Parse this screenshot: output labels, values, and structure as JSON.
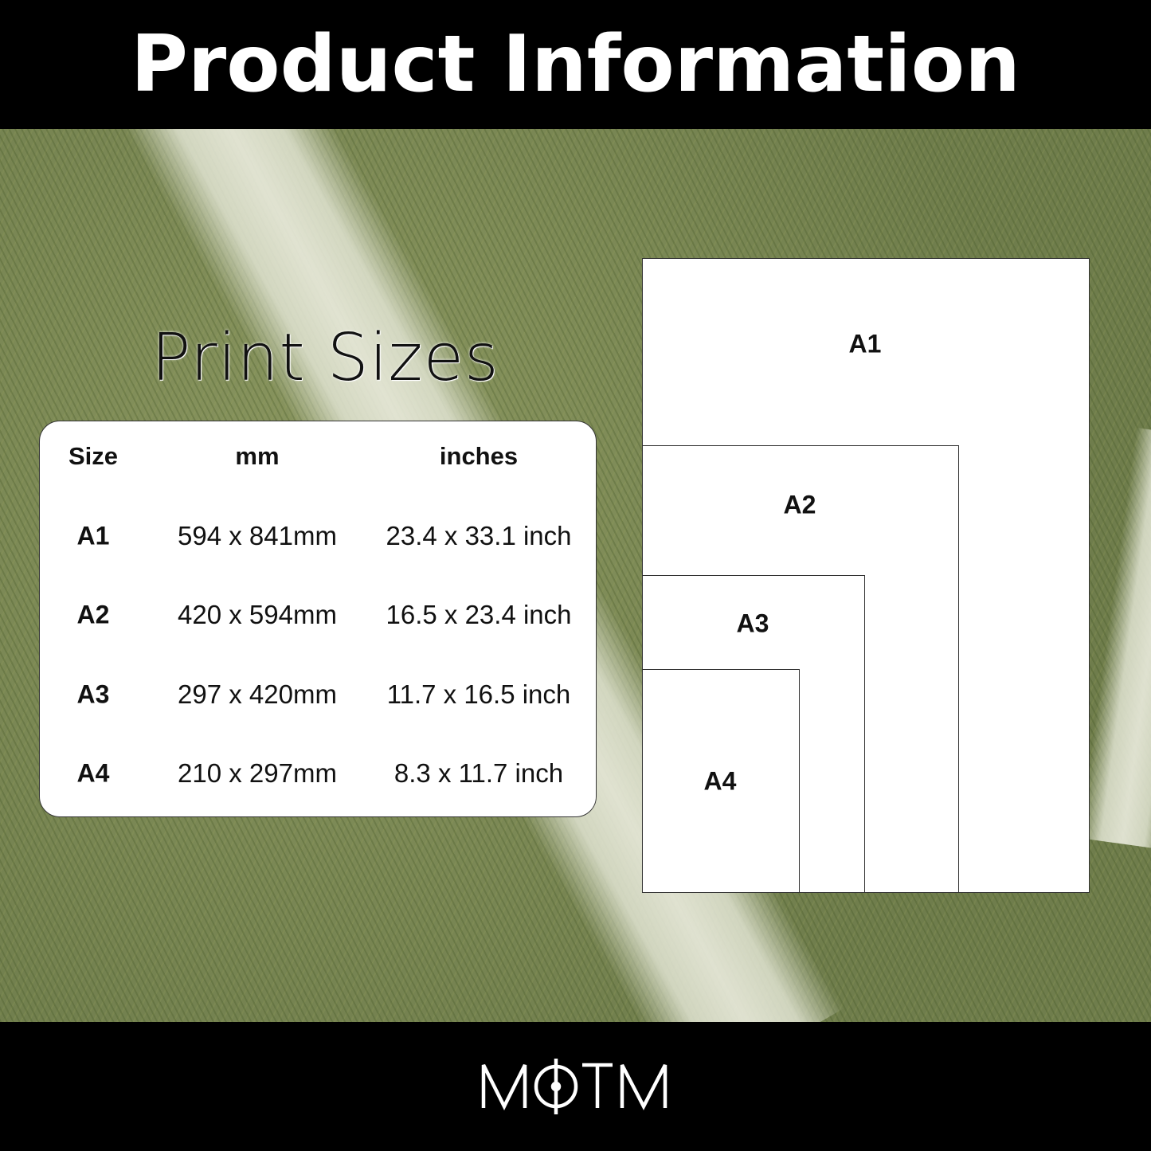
{
  "header": {
    "title": "Product Information"
  },
  "section_title": "Print Sizes",
  "table": {
    "columns": [
      "Size",
      "mm",
      "inches"
    ],
    "rows": [
      {
        "size": "A1",
        "mm": "594 x 841mm",
        "inches": "23.4 x 33.1 inch"
      },
      {
        "size": "A2",
        "mm": "420 x 594mm",
        "inches": "16.5 x 23.4 inch"
      },
      {
        "size": "A3",
        "mm": "297 x 420mm",
        "inches": "11.7 x 16.5 inch"
      },
      {
        "size": "A4",
        "mm": "210 x 297mm",
        "inches": "8.3 x 11.7 inch"
      }
    ]
  },
  "diagram": {
    "labels": [
      "A1",
      "A2",
      "A3",
      "A4"
    ]
  },
  "footer": {
    "logo": "MOTM"
  },
  "colors": {
    "bars": "#000000",
    "grass": "#7d8a5c",
    "paper": "#ffffff"
  }
}
